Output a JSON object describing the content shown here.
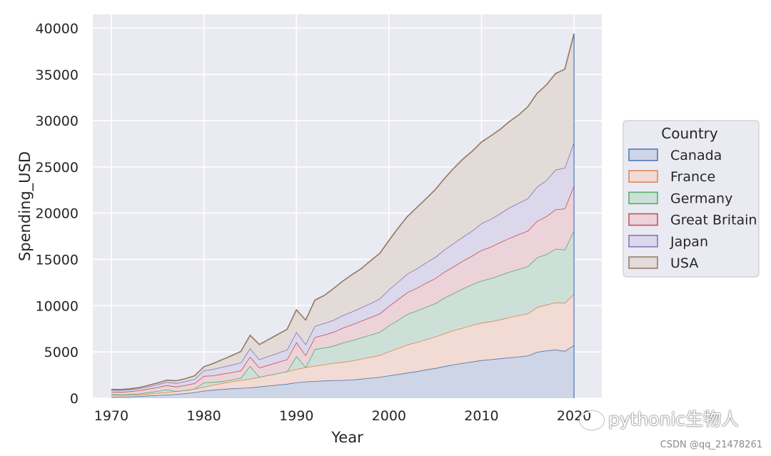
{
  "chart_data": {
    "type": "area",
    "stacked": true,
    "xlabel": "Year",
    "ylabel": "Spending_USD",
    "xlim": [
      1968,
      2023
    ],
    "ylim": [
      0,
      41500
    ],
    "xticks": [
      1970,
      1980,
      1990,
      2000,
      2010,
      2020
    ],
    "yticks": [
      0,
      5000,
      10000,
      15000,
      20000,
      25000,
      30000,
      35000,
      40000
    ],
    "grid": true,
    "legend": {
      "title": "Country",
      "placement": "outside right"
    },
    "x": [
      1970,
      1971,
      1972,
      1973,
      1974,
      1975,
      1976,
      1977,
      1978,
      1979,
      1980,
      1981,
      1982,
      1983,
      1984,
      1985,
      1986,
      1987,
      1988,
      1989,
      1990,
      1991,
      1992,
      1993,
      1994,
      1995,
      1996,
      1997,
      1998,
      1999,
      2000,
      2001,
      2002,
      2003,
      2004,
      2005,
      2006,
      2007,
      2008,
      2009,
      2010,
      2011,
      2012,
      2013,
      2014,
      2015,
      2016,
      2017,
      2018,
      2019,
      2020
    ],
    "series": [
      {
        "name": "Canada",
        "color": "#4c72b0",
        "fill": "#cdd5e6",
        "values": [
          150,
          150,
          180,
          220,
          280,
          330,
          380,
          450,
          520,
          640,
          800,
          900,
          980,
          1050,
          1100,
          1150,
          1250,
          1350,
          1450,
          1550,
          1700,
          1800,
          1850,
          1900,
          1950,
          1950,
          2000,
          2100,
          2200,
          2300,
          2450,
          2600,
          2750,
          2900,
          3100,
          3250,
          3450,
          3650,
          3800,
          3950,
          4100,
          4200,
          4300,
          4400,
          4500,
          4600,
          5000,
          5150,
          5250,
          5100,
          5750
        ]
      },
      {
        "name": "France",
        "color": "#dd8452",
        "fill": "#f2dbd4",
        "values": [
          190,
          170,
          160,
          170,
          200,
          240,
          270,
          300,
          340,
          380,
          400,
          550,
          650,
          750,
          850,
          950,
          1050,
          1150,
          1250,
          1350,
          1450,
          1550,
          1650,
          1750,
          1850,
          1950,
          2050,
          2150,
          2250,
          2350,
          2600,
          2800,
          3050,
          3150,
          3250,
          3400,
          3550,
          3700,
          3800,
          3950,
          4050,
          4100,
          4200,
          4350,
          4450,
          4550,
          4850,
          4950,
          5100,
          5200,
          5500
        ]
      },
      {
        "name": "Germany",
        "color": "#55a868",
        "fill": "#cde0d8",
        "values": [
          100,
          100,
          100,
          100,
          150,
          200,
          300,
          0,
          0,
          0,
          500,
          300,
          200,
          200,
          250,
          1400,
          0,
          0,
          0,
          0,
          1400,
          0,
          1800,
          1800,
          1850,
          2100,
          2200,
          2300,
          2400,
          2500,
          2800,
          3050,
          3300,
          3400,
          3500,
          3600,
          3850,
          4000,
          4250,
          4400,
          4550,
          4650,
          4800,
          4900,
          5000,
          5100,
          5350,
          5450,
          5800,
          5750,
          6900
        ]
      },
      {
        "name": "Great Britain",
        "color": "#c44e52",
        "fill": "#ecd3da",
        "values": [
          250,
          250,
          300,
          350,
          380,
          420,
          450,
          500,
          550,
          600,
          700,
          700,
          800,
          800,
          800,
          1000,
          1000,
          1100,
          1200,
          1300,
          1500,
          1300,
          1300,
          1400,
          1500,
          1600,
          1700,
          1800,
          1900,
          2000,
          2100,
          2250,
          2350,
          2450,
          2600,
          2700,
          2800,
          2900,
          3000,
          3100,
          3300,
          3400,
          3550,
          3650,
          3750,
          3850,
          3950,
          4100,
          4250,
          4450,
          4850
        ]
      },
      {
        "name": "Japan",
        "color": "#8172b3",
        "fill": "#dcd8ec",
        "values": [
          200,
          200,
          200,
          220,
          250,
          300,
          350,
          380,
          400,
          450,
          600,
          700,
          750,
          800,
          850,
          900,
          900,
          950,
          1000,
          1050,
          1100,
          1200,
          1200,
          1250,
          1300,
          1350,
          1400,
          1450,
          1500,
          1600,
          1800,
          1900,
          2000,
          2100,
          2200,
          2300,
          2400,
          2500,
          2600,
          2700,
          2900,
          3000,
          3100,
          3300,
          3400,
          3500,
          3700,
          3900,
          4300,
          4400,
          4700
        ]
      },
      {
        "name": "USA",
        "color": "#937860",
        "fill": "#e2dbd8",
        "values": [
          60,
          70,
          80,
          100,
          130,
          160,
          200,
          250,
          300,
          350,
          400,
          600,
          800,
          1000,
          1200,
          1400,
          1600,
          1800,
          2000,
          2200,
          2400,
          2600,
          2800,
          3000,
          3400,
          3700,
          4000,
          4200,
          4600,
          4900,
          5300,
          5800,
          6200,
          6600,
          6900,
          7300,
          7700,
          8100,
          8400,
          8600,
          8800,
          9000,
          9100,
          9300,
          9500,
          9900,
          10100,
          10300,
          10400,
          10650,
          11700
        ]
      }
    ]
  },
  "watermark": {
    "text": "pythonic生物人"
  },
  "credit": {
    "text": "CSDN @qq_21478261"
  }
}
